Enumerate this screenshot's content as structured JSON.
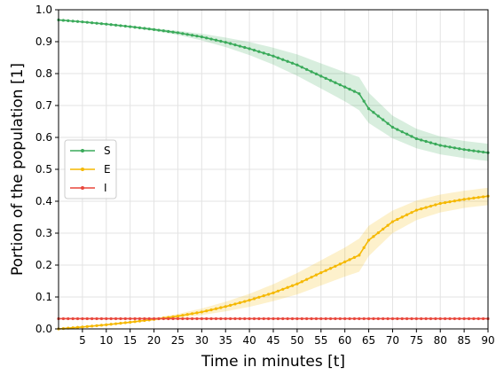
{
  "chart_data": {
    "type": "line",
    "xlabel": "Time in minutes [t]",
    "ylabel": "Portion of the population [1]",
    "xlim": [
      0,
      90
    ],
    "ylim": [
      0.0,
      1.0
    ],
    "x_ticks": [
      5,
      10,
      15,
      20,
      25,
      30,
      35,
      40,
      45,
      50,
      55,
      60,
      65,
      70,
      75,
      80,
      85,
      90
    ],
    "y_ticks": [
      "0.0",
      "0.1",
      "0.2",
      "0.3",
      "0.4",
      "0.5",
      "0.6",
      "0.7",
      "0.8",
      "0.9",
      "1.0"
    ],
    "grid": true,
    "legend_position": "center-left",
    "x": [
      0,
      5,
      10,
      15,
      20,
      25,
      30,
      35,
      40,
      45,
      50,
      55,
      60,
      63,
      65,
      70,
      75,
      80,
      85,
      90
    ],
    "series": [
      {
        "name": "S",
        "color": "#3aaa5a",
        "values": [
          0.968,
          0.962,
          0.955,
          0.947,
          0.938,
          0.928,
          0.915,
          0.898,
          0.878,
          0.855,
          0.827,
          0.792,
          0.758,
          0.737,
          0.69,
          0.632,
          0.596,
          0.575,
          0.562,
          0.552
        ],
        "band_lower": [
          0.968,
          0.962,
          0.954,
          0.945,
          0.934,
          0.921,
          0.904,
          0.883,
          0.858,
          0.828,
          0.793,
          0.753,
          0.713,
          0.685,
          0.645,
          0.597,
          0.566,
          0.547,
          0.535,
          0.526
        ],
        "band_upper": [
          0.968,
          0.963,
          0.957,
          0.95,
          0.942,
          0.934,
          0.925,
          0.913,
          0.899,
          0.881,
          0.86,
          0.832,
          0.804,
          0.789,
          0.74,
          0.668,
          0.627,
          0.603,
          0.589,
          0.58
        ]
      },
      {
        "name": "E",
        "color": "#f5b800",
        "values": [
          0.0,
          0.006,
          0.013,
          0.021,
          0.03,
          0.04,
          0.053,
          0.07,
          0.09,
          0.113,
          0.141,
          0.176,
          0.21,
          0.231,
          0.278,
          0.336,
          0.372,
          0.393,
          0.406,
          0.416
        ],
        "band_lower": [
          0.0,
          0.005,
          0.011,
          0.018,
          0.026,
          0.034,
          0.043,
          0.055,
          0.069,
          0.087,
          0.108,
          0.136,
          0.164,
          0.179,
          0.228,
          0.3,
          0.341,
          0.365,
          0.379,
          0.388
        ],
        "band_upper": [
          0.0,
          0.006,
          0.014,
          0.023,
          0.034,
          0.047,
          0.064,
          0.085,
          0.11,
          0.14,
          0.175,
          0.215,
          0.255,
          0.283,
          0.323,
          0.371,
          0.402,
          0.421,
          0.433,
          0.442
        ]
      },
      {
        "name": "I",
        "color": "#e8473c",
        "values": [
          0.032,
          0.032,
          0.032,
          0.032,
          0.032,
          0.032,
          0.032,
          0.032,
          0.032,
          0.032,
          0.032,
          0.032,
          0.032,
          0.032,
          0.032,
          0.032,
          0.032,
          0.032,
          0.032,
          0.032
        ]
      }
    ]
  }
}
